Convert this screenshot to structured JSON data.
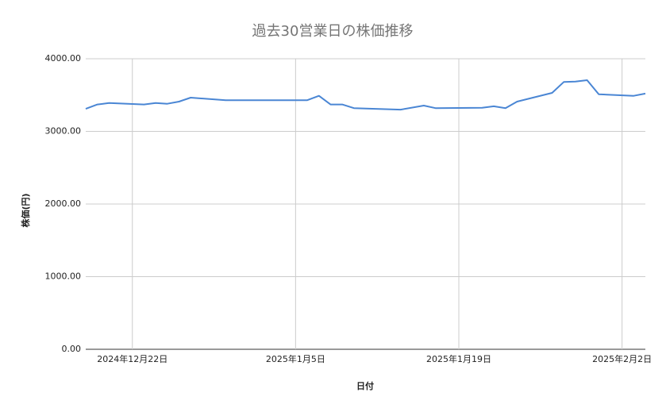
{
  "chart_data": {
    "type": "line",
    "title": "過去30営業日の株価推移",
    "x_label": "日付",
    "y_label": "株価(円)",
    "x": [
      "2024-12-18",
      "2024-12-19",
      "2024-12-20",
      "2024-12-23",
      "2024-12-24",
      "2024-12-25",
      "2024-12-26",
      "2024-12-27",
      "2024-12-30",
      "2024-12-31",
      "2025-01-02",
      "2025-01-03",
      "2025-01-06",
      "2025-01-07",
      "2025-01-08",
      "2025-01-09",
      "2025-01-10",
      "2025-01-14",
      "2025-01-16",
      "2025-01-17",
      "2025-01-21",
      "2025-01-22",
      "2025-01-23",
      "2025-01-24",
      "2025-01-27",
      "2025-01-28",
      "2025-01-29",
      "2025-01-30",
      "2025-01-31",
      "2025-02-03",
      "2025-02-04"
    ],
    "series": [
      {
        "name": "株価",
        "color": "#4a86d4",
        "values": [
          3310,
          3370,
          3390,
          3370,
          3390,
          3380,
          3410,
          3465,
          3430,
          3430,
          3430,
          3430,
          3430,
          3490,
          3370,
          3370,
          3320,
          3300,
          3355,
          3320,
          3325,
          3345,
          3320,
          3410,
          3530,
          3680,
          3685,
          3705,
          3510,
          3490,
          3520
        ]
      }
    ],
    "xlim": [
      "2024-12-18",
      "2025-02-04"
    ],
    "xticks": [
      {
        "value": "2024-12-22",
        "label": "2024年12月22日"
      },
      {
        "value": "2025-01-05",
        "label": "2025年1月5日"
      },
      {
        "value": "2025-01-19",
        "label": "2025年1月19日"
      },
      {
        "value": "2025-02-02",
        "label": "2025年2月2日"
      }
    ],
    "ylim": [
      0,
      4000
    ],
    "yticks": [
      {
        "value": 0,
        "label": "0.00"
      },
      {
        "value": 1000,
        "label": "1000.00"
      },
      {
        "value": 2000,
        "label": "2000.00"
      },
      {
        "value": 3000,
        "label": "3000.00"
      },
      {
        "value": 4000,
        "label": "4000.00"
      }
    ],
    "grid": true
  }
}
